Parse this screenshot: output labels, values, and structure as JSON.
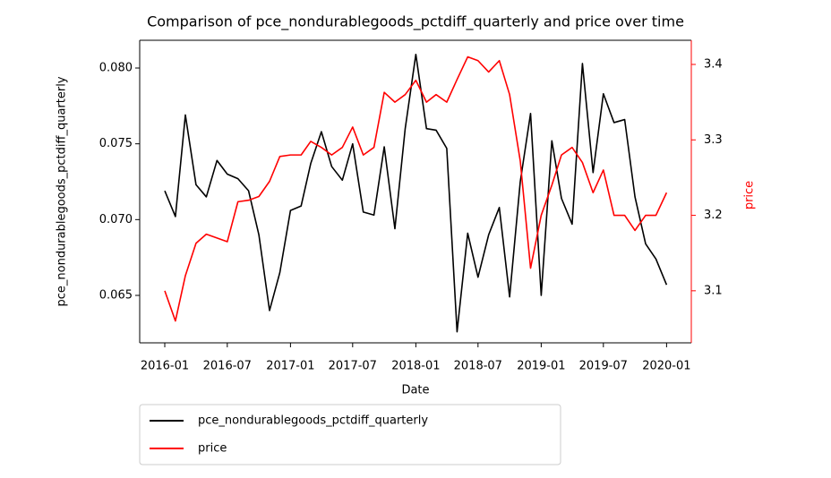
{
  "chart_data": {
    "type": "line",
    "title": "Comparison of pce_nondurablegoods_pctdiff_quarterly and price over time",
    "xlabel": "Date",
    "ylabel": "pce_nondurablegoods_pctdiff_quarterly",
    "y2label": "price",
    "x": [
      "2016-01-01",
      "2016-02-01",
      "2016-03-01",
      "2016-04-01",
      "2016-05-01",
      "2016-06-01",
      "2016-07-01",
      "2016-08-01",
      "2016-09-01",
      "2016-10-01",
      "2016-11-01",
      "2016-12-01",
      "2017-01-01",
      "2017-02-01",
      "2017-03-01",
      "2017-04-01",
      "2017-05-01",
      "2017-06-01",
      "2017-07-01",
      "2017-08-01",
      "2017-09-01",
      "2017-10-01",
      "2017-11-01",
      "2017-12-01",
      "2018-01-01",
      "2018-02-01",
      "2018-03-01",
      "2018-04-01",
      "2018-05-01",
      "2018-06-01",
      "2018-07-01",
      "2018-08-01",
      "2018-09-01",
      "2018-10-01",
      "2018-11-01",
      "2018-12-01",
      "2019-01-01",
      "2019-02-01",
      "2019-03-01",
      "2019-04-01",
      "2019-05-01",
      "2019-06-01",
      "2019-07-01",
      "2019-08-01",
      "2019-09-01",
      "2019-10-01",
      "2019-11-01",
      "2019-12-01",
      "2020-01-01"
    ],
    "series": [
      {
        "name": "pce_nondurablegoods_pctdiff_quarterly",
        "color": "#000000",
        "axis": "y",
        "values": [
          0.0719,
          0.0702,
          0.0769,
          0.0723,
          0.0715,
          0.0739,
          0.073,
          0.0727,
          0.0719,
          0.069,
          0.064,
          0.0665,
          0.0706,
          0.0709,
          0.0737,
          0.0758,
          0.0735,
          0.0726,
          0.075,
          0.0705,
          0.0703,
          0.0748,
          0.0694,
          0.076,
          0.0809,
          0.076,
          0.0759,
          0.0747,
          0.0626,
          0.0691,
          0.0662,
          0.069,
          0.0708,
          0.0649,
          0.0725,
          0.077,
          0.065,
          0.0752,
          0.0714,
          0.0697,
          0.0803,
          0.0731,
          0.0783,
          0.0764,
          0.0766,
          0.0715,
          0.0684,
          0.0674,
          0.0657
        ]
      },
      {
        "name": "price",
        "color": "#ff0000",
        "axis": "y2",
        "values": [
          3.1,
          3.06,
          3.12,
          3.163,
          3.175,
          3.17,
          3.165,
          3.218,
          3.22,
          3.225,
          3.245,
          3.278,
          3.28,
          3.28,
          3.298,
          3.29,
          3.28,
          3.29,
          3.317,
          3.28,
          3.29,
          3.363,
          3.35,
          3.36,
          3.379,
          3.35,
          3.36,
          3.35,
          3.38,
          3.41,
          3.405,
          3.39,
          3.405,
          3.36,
          3.272,
          3.13,
          3.2,
          3.24,
          3.28,
          3.29,
          3.27,
          3.23,
          3.26,
          3.2,
          3.2,
          3.18,
          3.2,
          3.2,
          3.23
        ]
      }
    ],
    "xlim": [
      "2015-10-20",
      "2020-03-13"
    ],
    "xticks": [
      {
        "value": "2016-01-01",
        "label": "2016-01"
      },
      {
        "value": "2016-07-01",
        "label": "2016-07"
      },
      {
        "value": "2017-01-01",
        "label": "2017-01"
      },
      {
        "value": "2017-07-01",
        "label": "2017-07"
      },
      {
        "value": "2018-01-01",
        "label": "2018-01"
      },
      {
        "value": "2018-07-01",
        "label": "2018-07"
      },
      {
        "value": "2019-01-01",
        "label": "2019-01"
      },
      {
        "value": "2019-07-01",
        "label": "2019-07"
      },
      {
        "value": "2020-01-01",
        "label": "2020-01"
      }
    ],
    "ylim": [
      0.06187,
      0.08183
    ],
    "yticks": [
      0.065,
      {
        "value": 0.07,
        "label": "0.070"
      },
      0.075,
      {
        "value": 0.08,
        "label": "0.080"
      }
    ],
    "y2lim": [
      3.031,
      3.432
    ],
    "y2ticks": [
      3.1,
      3.2,
      3.3,
      3.4
    ],
    "y2color": "#ff0000",
    "legend": "below",
    "grid": false
  }
}
